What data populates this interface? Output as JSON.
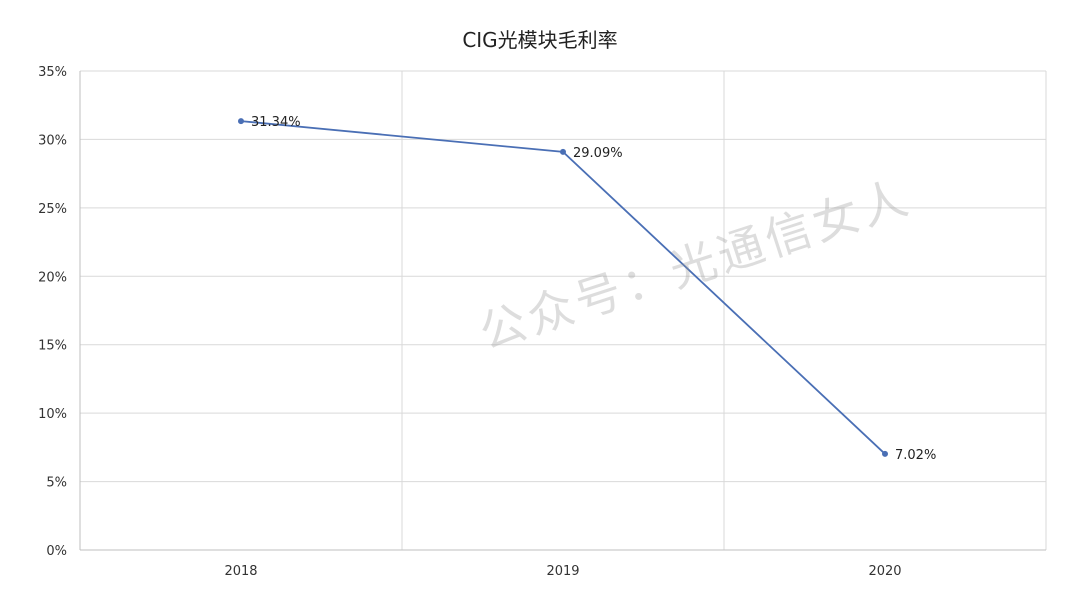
{
  "chart_data": {
    "type": "line",
    "title": "CIG光模块毛利率",
    "categories": [
      "2018",
      "2019",
      "2020"
    ],
    "series": [
      {
        "values": [
          31.34,
          29.09,
          7.02
        ],
        "data_labels": [
          "31.34%",
          "29.09%",
          "7.02%"
        ]
      }
    ],
    "ylim": [
      0,
      35
    ],
    "yticks": [
      "0%",
      "5%",
      "10%",
      "15%",
      "20%",
      "25%",
      "30%",
      "35%"
    ],
    "grid": true,
    "legend": "none"
  },
  "watermark": "公众号：光通信女人",
  "colors": {
    "line": "#4a6fb5",
    "grid": "#d9d9d9",
    "axis": "#bfbfbf"
  }
}
